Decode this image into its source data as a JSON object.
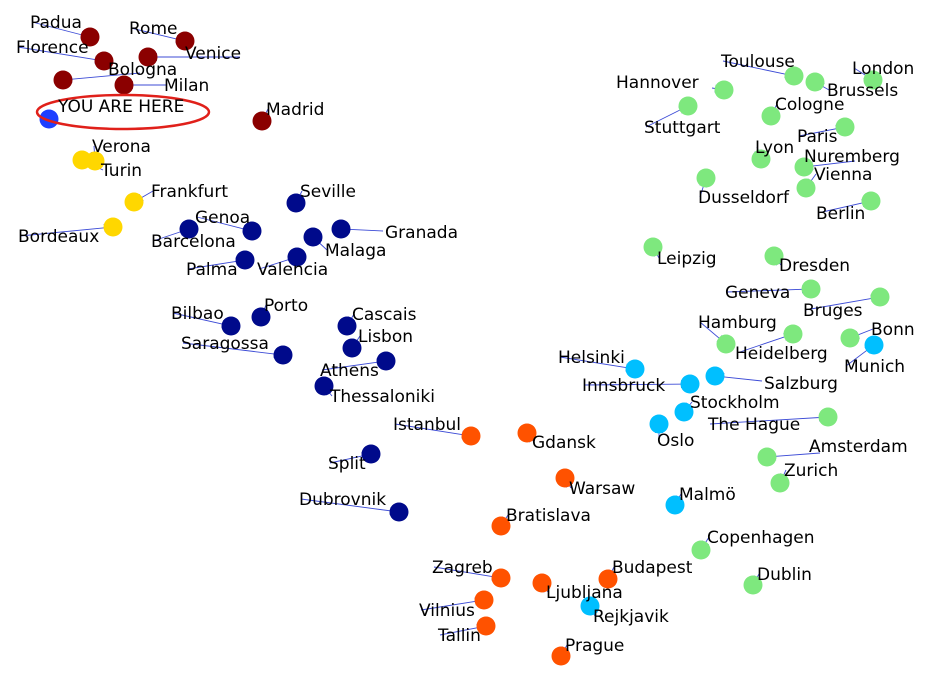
{
  "colors": {
    "group_red": "#8b0000",
    "group_yellow": "#ffd700",
    "group_navy": "#000a8b",
    "group_green": "#7ee87e",
    "group_orange": "#ff5200",
    "group_cyan": "#00bfff",
    "you_are_here_dot": "#1e3fff",
    "arrow": "#3c4bd6",
    "highlight_ellipse": "#e0201a"
  },
  "highlight": {
    "label": "YOU ARE HERE"
  },
  "groups": {
    "red": [
      "Padua",
      "Florence",
      "Rome",
      "Venice",
      "Bologna",
      "Milan",
      "Madrid"
    ],
    "yellow": [
      "Verona",
      "Turin",
      "Frankfurt",
      "Bordeaux"
    ],
    "navy": [
      "Seville",
      "Genoa",
      "Barcelona",
      "Granada",
      "Malaga",
      "Palma",
      "Valencia",
      "Bilbao",
      "Porto",
      "Cascais",
      "Lisbon",
      "Saragossa",
      "Athens",
      "Thessaloniki",
      "Split",
      "Dubrovnik"
    ],
    "green": [
      "Toulouse",
      "London",
      "Hannover",
      "Brussels",
      "Cologne",
      "Stuttgart",
      "Paris",
      "Lyon",
      "Nuremberg",
      "Vienna",
      "Dusseldorf",
      "Berlin",
      "Leipzig",
      "Dresden",
      "Geneva",
      "Bruges",
      "Hamburg",
      "Bonn",
      "Heidelberg",
      "The Hague",
      "Amsterdam",
      "Zurich",
      "Copenhagen",
      "Dublin"
    ],
    "cyan": [
      "Helsinki",
      "Munich",
      "Innsbruck",
      "Salzburg",
      "Stockholm",
      "Oslo",
      "Malmö",
      "Rejkjavik"
    ],
    "orange": [
      "Istanbul",
      "Gdansk",
      "Warsaw",
      "Bratislava",
      "Zagreb",
      "Budapest",
      "Ljubljana",
      "Vilnius",
      "Tallin",
      "Prague"
    ]
  }
}
